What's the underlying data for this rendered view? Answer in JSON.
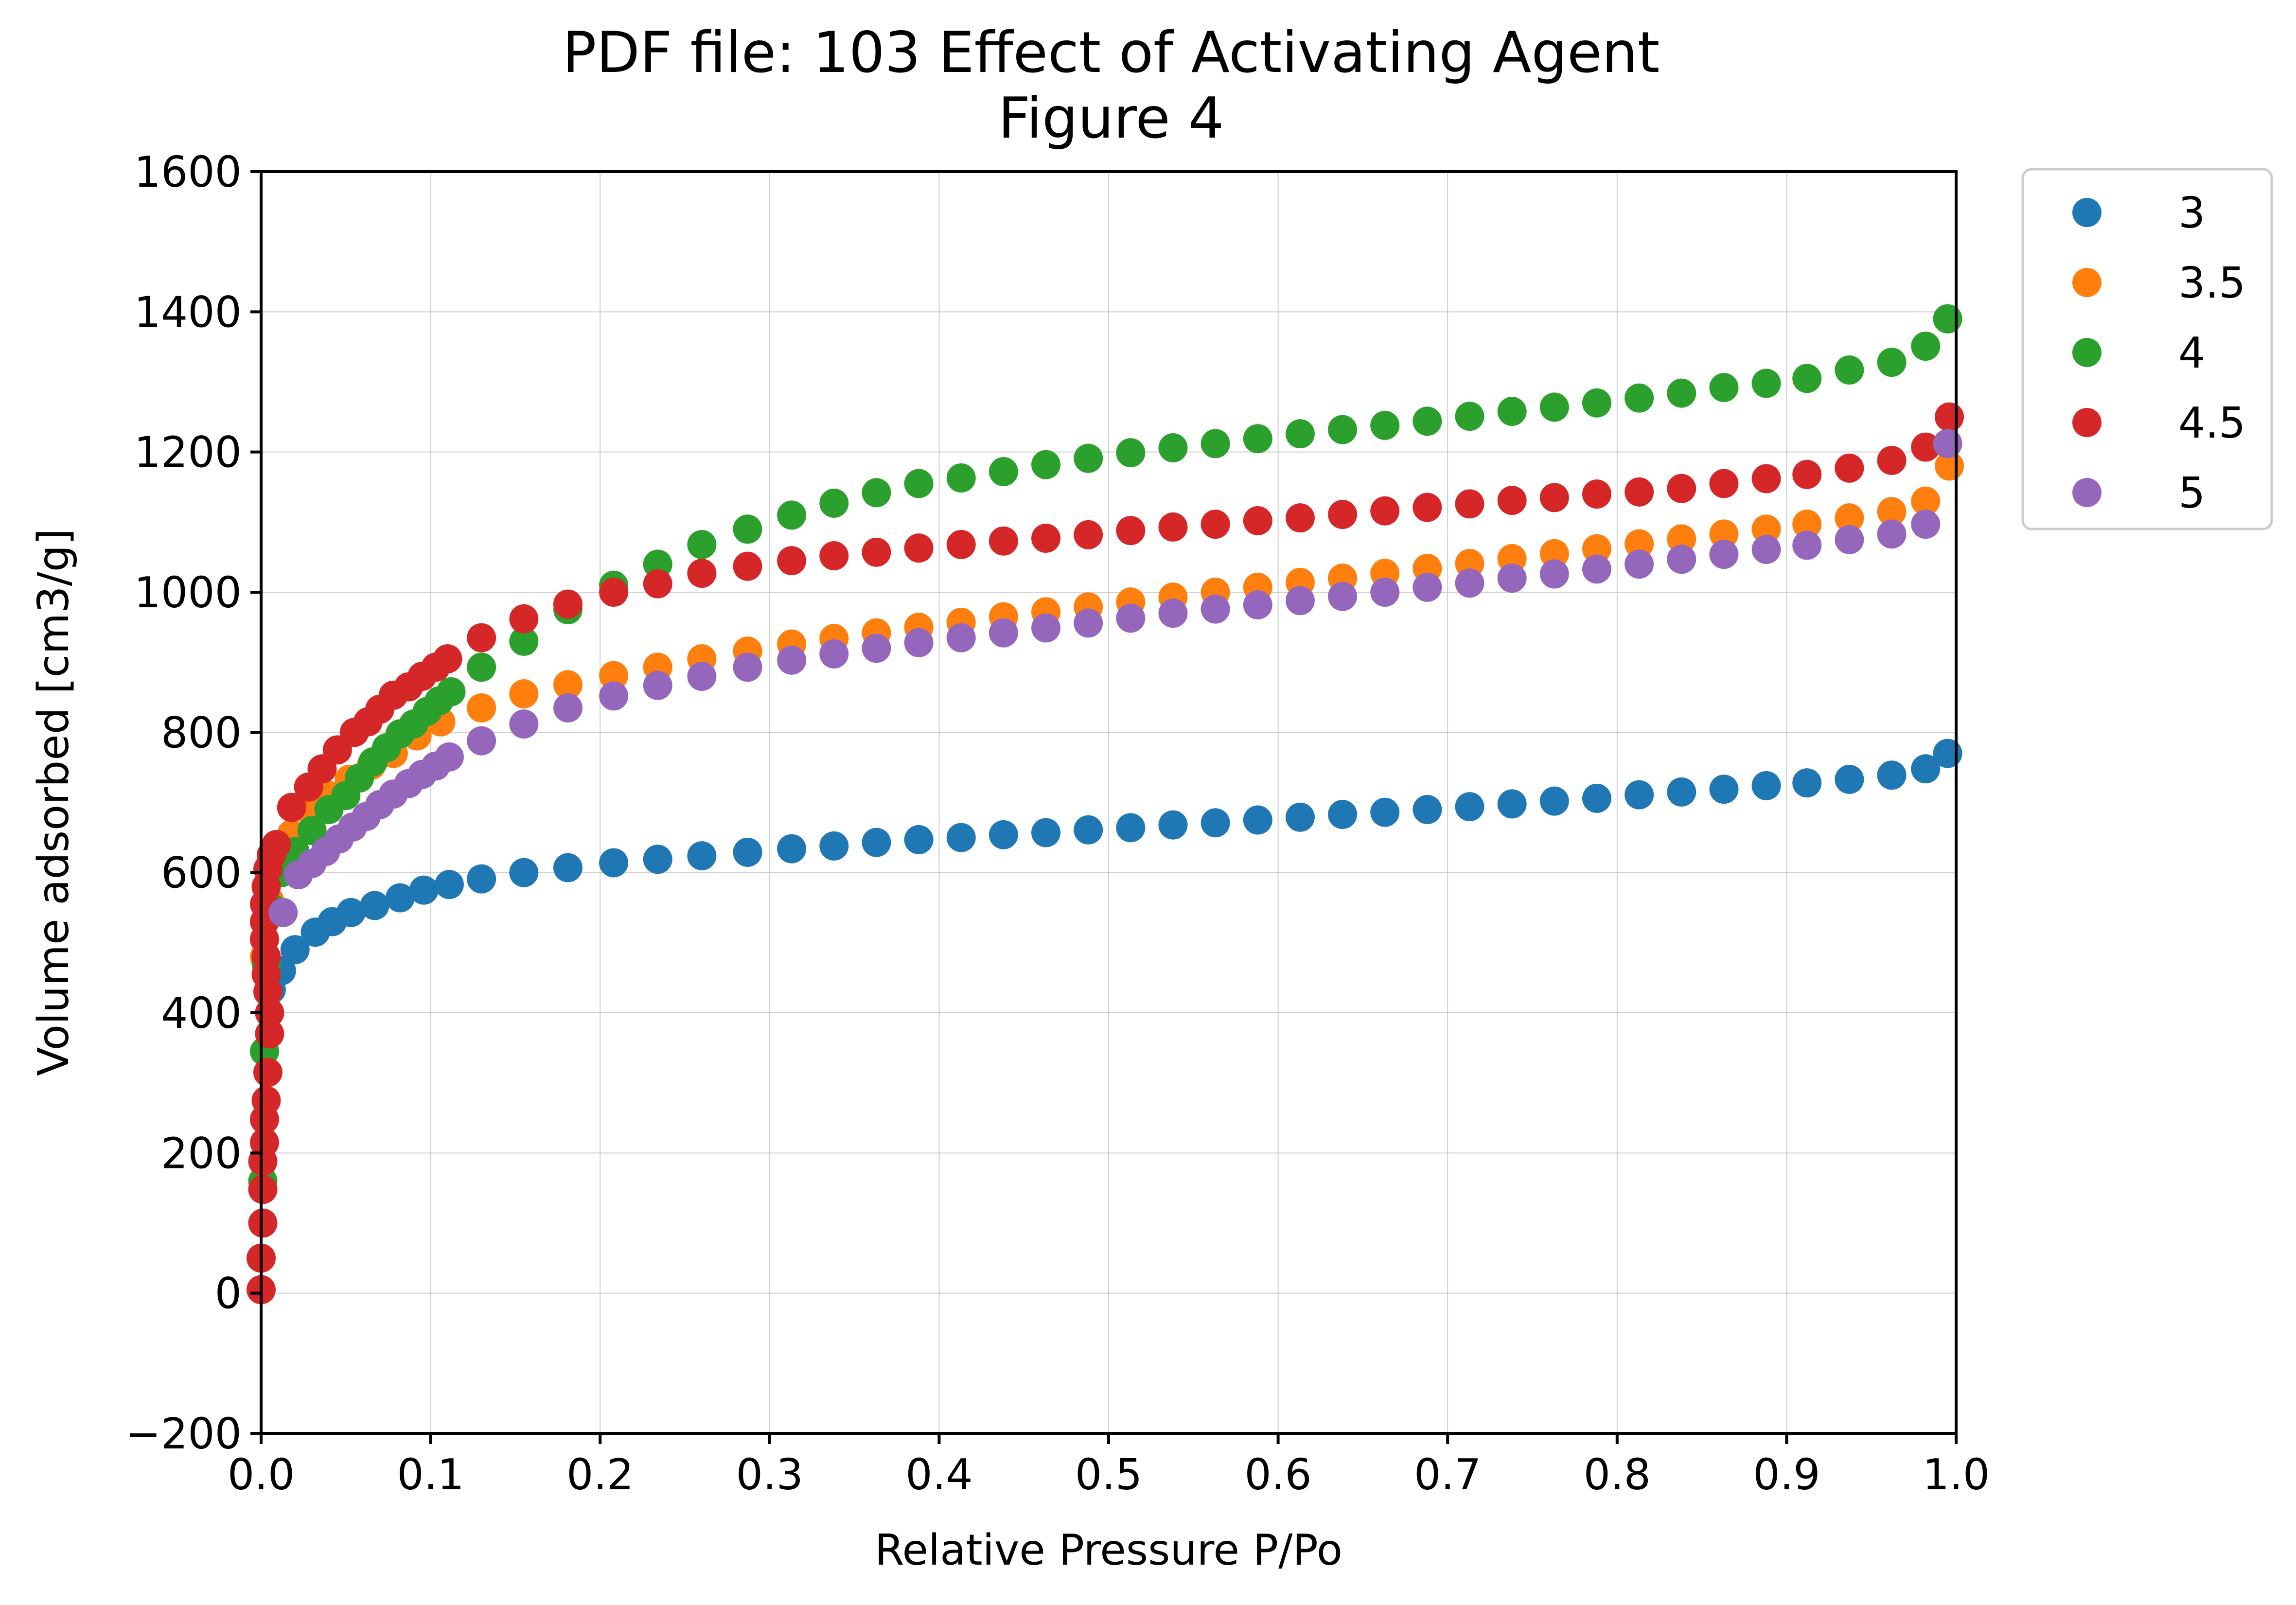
{
  "chart_data": {
    "type": "scatter",
    "title": "PDF file: 103 Effect of Activating Agent",
    "subtitle": "Figure 4",
    "xlabel": "Relative Pressure P/Po",
    "ylabel": "Volume adsorbed [cm3/g]",
    "xlim": [
      0.0,
      1.0
    ],
    "ylim": [
      -200,
      1600
    ],
    "xticks": [
      "0.0",
      "0.1",
      "0.2",
      "0.3",
      "0.4",
      "0.5",
      "0.6",
      "0.7",
      "0.8",
      "0.9",
      "1.0"
    ],
    "yticks": [
      "−200",
      "0",
      "200",
      "400",
      "600",
      "800",
      "1000",
      "1200",
      "1400",
      "1600"
    ],
    "xtick_values": [
      0.0,
      0.1,
      0.2,
      0.3,
      0.4,
      0.5,
      0.6,
      0.7,
      0.8,
      0.9,
      1.0
    ],
    "ytick_values": [
      -200,
      0,
      200,
      400,
      600,
      800,
      1000,
      1200,
      1400,
      1600
    ],
    "grid": true,
    "legend_position": "outside top-right",
    "series": [
      {
        "name": "3",
        "color": "#1f77b4",
        "points": [
          [
            0.006,
            433
          ],
          [
            0.012,
            460
          ],
          [
            0.02,
            490
          ],
          [
            0.032,
            515
          ],
          [
            0.042,
            530
          ],
          [
            0.053,
            543
          ],
          [
            0.067,
            553
          ],
          [
            0.082,
            564
          ],
          [
            0.096,
            575
          ],
          [
            0.111,
            583
          ],
          [
            0.13,
            591
          ],
          [
            0.155,
            600
          ],
          [
            0.181,
            607
          ],
          [
            0.208,
            614
          ],
          [
            0.234,
            619
          ],
          [
            0.26,
            624
          ],
          [
            0.287,
            629
          ],
          [
            0.313,
            634
          ],
          [
            0.338,
            638
          ],
          [
            0.363,
            643
          ],
          [
            0.388,
            647
          ],
          [
            0.413,
            650
          ],
          [
            0.438,
            654
          ],
          [
            0.463,
            657
          ],
          [
            0.488,
            661
          ],
          [
            0.513,
            664
          ],
          [
            0.538,
            668
          ],
          [
            0.563,
            671
          ],
          [
            0.588,
            675
          ],
          [
            0.613,
            679
          ],
          [
            0.638,
            683
          ],
          [
            0.663,
            686
          ],
          [
            0.688,
            690
          ],
          [
            0.713,
            694
          ],
          [
            0.738,
            698
          ],
          [
            0.763,
            702
          ],
          [
            0.788,
            706
          ],
          [
            0.813,
            711
          ],
          [
            0.838,
            715
          ],
          [
            0.863,
            719
          ],
          [
            0.888,
            724
          ],
          [
            0.912,
            728
          ],
          [
            0.937,
            733
          ],
          [
            0.962,
            739
          ],
          [
            0.982,
            748
          ],
          [
            0.995,
            770
          ]
        ]
      },
      {
        "name": "3.5",
        "color": "#ff7f0e",
        "points": [
          [
            0.002,
            480
          ],
          [
            0.005,
            560
          ],
          [
            0.01,
            620
          ],
          [
            0.018,
            655
          ],
          [
            0.028,
            690
          ],
          [
            0.04,
            710
          ],
          [
            0.052,
            733
          ],
          [
            0.065,
            753
          ],
          [
            0.078,
            770
          ],
          [
            0.092,
            795
          ],
          [
            0.106,
            815
          ],
          [
            0.13,
            835
          ],
          [
            0.155,
            855
          ],
          [
            0.181,
            868
          ],
          [
            0.208,
            881
          ],
          [
            0.234,
            893
          ],
          [
            0.26,
            905
          ],
          [
            0.287,
            916
          ],
          [
            0.313,
            926
          ],
          [
            0.338,
            934
          ],
          [
            0.363,
            942
          ],
          [
            0.388,
            950
          ],
          [
            0.413,
            957
          ],
          [
            0.438,
            965
          ],
          [
            0.463,
            972
          ],
          [
            0.488,
            979
          ],
          [
            0.513,
            986
          ],
          [
            0.538,
            993
          ],
          [
            0.563,
            1000
          ],
          [
            0.588,
            1007
          ],
          [
            0.613,
            1014
          ],
          [
            0.638,
            1020
          ],
          [
            0.663,
            1027
          ],
          [
            0.688,
            1034
          ],
          [
            0.713,
            1041
          ],
          [
            0.738,
            1048
          ],
          [
            0.763,
            1055
          ],
          [
            0.788,
            1062
          ],
          [
            0.813,
            1069
          ],
          [
            0.838,
            1076
          ],
          [
            0.863,
            1083
          ],
          [
            0.888,
            1090
          ],
          [
            0.912,
            1097
          ],
          [
            0.937,
            1106
          ],
          [
            0.962,
            1115
          ],
          [
            0.982,
            1130
          ],
          [
            0.996,
            1180
          ]
        ]
      },
      {
        "name": "4",
        "color": "#2ca02c",
        "points": [
          [
            0.001,
            160
          ],
          [
            0.002,
            345
          ],
          [
            0.003,
            470
          ],
          [
            0.006,
            550
          ],
          [
            0.012,
            600
          ],
          [
            0.02,
            630
          ],
          [
            0.03,
            660
          ],
          [
            0.04,
            690
          ],
          [
            0.05,
            710
          ],
          [
            0.058,
            735
          ],
          [
            0.066,
            758
          ],
          [
            0.074,
            778
          ],
          [
            0.082,
            798
          ],
          [
            0.09,
            812
          ],
          [
            0.098,
            830
          ],
          [
            0.105,
            845
          ],
          [
            0.112,
            858
          ],
          [
            0.13,
            893
          ],
          [
            0.155,
            930
          ],
          [
            0.181,
            975
          ],
          [
            0.208,
            1010
          ],
          [
            0.234,
            1040
          ],
          [
            0.26,
            1068
          ],
          [
            0.287,
            1090
          ],
          [
            0.313,
            1110
          ],
          [
            0.338,
            1127
          ],
          [
            0.363,
            1142
          ],
          [
            0.388,
            1155
          ],
          [
            0.413,
            1163
          ],
          [
            0.438,
            1172
          ],
          [
            0.463,
            1182
          ],
          [
            0.488,
            1191
          ],
          [
            0.513,
            1199
          ],
          [
            0.538,
            1206
          ],
          [
            0.563,
            1212
          ],
          [
            0.588,
            1219
          ],
          [
            0.613,
            1226
          ],
          [
            0.638,
            1232
          ],
          [
            0.663,
            1238
          ],
          [
            0.688,
            1244
          ],
          [
            0.713,
            1251
          ],
          [
            0.738,
            1258
          ],
          [
            0.763,
            1264
          ],
          [
            0.788,
            1270
          ],
          [
            0.813,
            1277
          ],
          [
            0.838,
            1284
          ],
          [
            0.863,
            1292
          ],
          [
            0.888,
            1298
          ],
          [
            0.912,
            1305
          ],
          [
            0.937,
            1317
          ],
          [
            0.962,
            1328
          ],
          [
            0.982,
            1351
          ],
          [
            0.995,
            1390
          ]
        ]
      },
      {
        "name": "4.5",
        "color": "#d62728",
        "points": [
          [
            0.0,
            5
          ],
          [
            0.0,
            50
          ],
          [
            0.001,
            100
          ],
          [
            0.001,
            148
          ],
          [
            0.001,
            188
          ],
          [
            0.002,
            215
          ],
          [
            0.002,
            248
          ],
          [
            0.003,
            275
          ],
          [
            0.004,
            315
          ],
          [
            0.005,
            370
          ],
          [
            0.005,
            400
          ],
          [
            0.004,
            430
          ],
          [
            0.003,
            455
          ],
          [
            0.003,
            480
          ],
          [
            0.002,
            505
          ],
          [
            0.002,
            530
          ],
          [
            0.002,
            555
          ],
          [
            0.003,
            580
          ],
          [
            0.004,
            605
          ],
          [
            0.006,
            625
          ],
          [
            0.009,
            640
          ],
          [
            0.018,
            693
          ],
          [
            0.028,
            722
          ],
          [
            0.036,
            748
          ],
          [
            0.045,
            775
          ],
          [
            0.055,
            800
          ],
          [
            0.063,
            815
          ],
          [
            0.07,
            833
          ],
          [
            0.078,
            853
          ],
          [
            0.087,
            865
          ],
          [
            0.095,
            880
          ],
          [
            0.103,
            893
          ],
          [
            0.11,
            905
          ],
          [
            0.13,
            935
          ],
          [
            0.155,
            962
          ],
          [
            0.181,
            983
          ],
          [
            0.208,
            1000
          ],
          [
            0.234,
            1012
          ],
          [
            0.26,
            1027
          ],
          [
            0.287,
            1037
          ],
          [
            0.313,
            1045
          ],
          [
            0.338,
            1052
          ],
          [
            0.363,
            1057
          ],
          [
            0.388,
            1063
          ],
          [
            0.413,
            1068
          ],
          [
            0.438,
            1073
          ],
          [
            0.463,
            1077
          ],
          [
            0.488,
            1082
          ],
          [
            0.513,
            1088
          ],
          [
            0.538,
            1093
          ],
          [
            0.563,
            1097
          ],
          [
            0.588,
            1102
          ],
          [
            0.613,
            1106
          ],
          [
            0.638,
            1111
          ],
          [
            0.663,
            1116
          ],
          [
            0.688,
            1121
          ],
          [
            0.713,
            1126
          ],
          [
            0.738,
            1131
          ],
          [
            0.763,
            1135
          ],
          [
            0.788,
            1140
          ],
          [
            0.813,
            1143
          ],
          [
            0.838,
            1148
          ],
          [
            0.863,
            1155
          ],
          [
            0.888,
            1162
          ],
          [
            0.912,
            1168
          ],
          [
            0.937,
            1177
          ],
          [
            0.962,
            1188
          ],
          [
            0.982,
            1207
          ],
          [
            0.996,
            1250
          ]
        ]
      },
      {
        "name": "5",
        "color": "#9467bd",
        "points": [
          [
            0.013,
            543
          ],
          [
            0.022,
            597
          ],
          [
            0.03,
            613
          ],
          [
            0.038,
            630
          ],
          [
            0.046,
            648
          ],
          [
            0.054,
            665
          ],
          [
            0.062,
            680
          ],
          [
            0.07,
            697
          ],
          [
            0.078,
            712
          ],
          [
            0.087,
            727
          ],
          [
            0.095,
            740
          ],
          [
            0.103,
            752
          ],
          [
            0.111,
            765
          ],
          [
            0.13,
            788
          ],
          [
            0.155,
            812
          ],
          [
            0.181,
            835
          ],
          [
            0.208,
            852
          ],
          [
            0.234,
            867
          ],
          [
            0.26,
            880
          ],
          [
            0.287,
            893
          ],
          [
            0.313,
            903
          ],
          [
            0.338,
            912
          ],
          [
            0.363,
            920
          ],
          [
            0.388,
            928
          ],
          [
            0.413,
            935
          ],
          [
            0.438,
            942
          ],
          [
            0.463,
            949
          ],
          [
            0.488,
            956
          ],
          [
            0.513,
            963
          ],
          [
            0.538,
            970
          ],
          [
            0.563,
            976
          ],
          [
            0.588,
            982
          ],
          [
            0.613,
            988
          ],
          [
            0.638,
            994
          ],
          [
            0.663,
            1000
          ],
          [
            0.688,
            1007
          ],
          [
            0.713,
            1013
          ],
          [
            0.738,
            1020
          ],
          [
            0.763,
            1026
          ],
          [
            0.788,
            1033
          ],
          [
            0.813,
            1040
          ],
          [
            0.838,
            1047
          ],
          [
            0.863,
            1054
          ],
          [
            0.888,
            1061
          ],
          [
            0.912,
            1067
          ],
          [
            0.937,
            1075
          ],
          [
            0.962,
            1083
          ],
          [
            0.982,
            1097
          ],
          [
            0.995,
            1212
          ]
        ]
      }
    ]
  }
}
